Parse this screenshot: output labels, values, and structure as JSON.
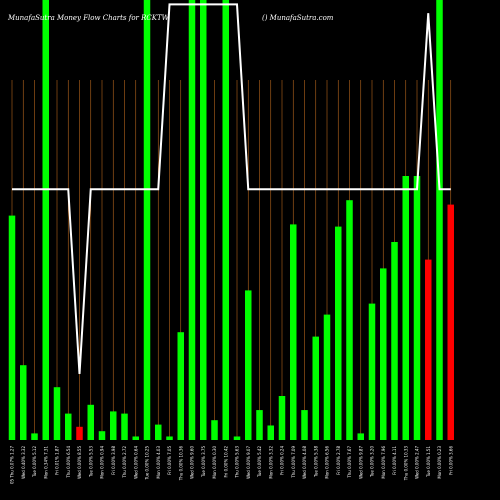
{
  "chart_data": {
    "type": "bar",
    "title": "MunafaSutra  Money Flow  Charts for RCKTW",
    "subtitle": "() MunafaSutra.com",
    "colors": {
      "background": "#000000",
      "bar_up": "#00ff00",
      "bar_down": "#ff0000",
      "grid": "#b5651d",
      "line": "#ffffff"
    },
    "grid": "vertical",
    "ylim": [
      0,
      100
    ],
    "categories": [
      "05 Thu 0.07% 1.27",
      "Wed 0.40% 3.32",
      "Tue 0.00% 5.12",
      "Mon 0.34% 7.31",
      "Fri 0.01% 1.87",
      "Thu 0.00% 6.54",
      "Wed 0.00% 8.55",
      "Tue 0.00% 5.53",
      "Mon 0.00% 0.94",
      "Fri 0.00% 3.98",
      "Thu 0.00% 2.72",
      "Wed 0.00% 0.64",
      "Tue 0.00% 10.25",
      "Mon 0.00% 4.03",
      "Fri 0.00% 7.05",
      "Thu 0.00% 10.36",
      "Wed 0.00% 9.60",
      "Tue 0.00% 3.75",
      "Mon 0.00% 0.30",
      "Fri 0.00% 10.42",
      "Thu 0.00% 5.63",
      "Wed 0.00% 9.07",
      "Tue 0.00% 5.42",
      "Mon 0.00% 3.32",
      "Fri 0.00% 0.24",
      "Thu 0.00% 7.09",
      "Wed 0.00% 4.08",
      "Tue 0.00% 5.38",
      "Mon 0.00% 6.56",
      "Fri 0.00% 2.78",
      "Thu 0.00% 7.67",
      "Wed 0.00% 9.87",
      "Tue 0.00% 3.20",
      "Mon 0.00% 7.96",
      "Fri 0.00% 4.11",
      "Thu 0.00% 10.33",
      "Wed 0.00% 2.47",
      "Tue 0.00% 1.51",
      "Mon 0.00% 0.23",
      "Fri 0.00% 3.66"
    ],
    "series": [
      {
        "values": [
          51,
          17,
          1.5,
          100,
          12,
          6,
          3,
          8,
          2,
          6.5,
          6,
          0.8,
          100,
          3.5,
          0.8,
          24.5,
          100,
          100,
          4.5,
          100,
          0.8,
          34,
          6.8,
          3.3,
          10,
          49,
          6.8,
          23.5,
          28.5,
          48.5,
          54.5,
          1.5,
          31,
          39,
          45,
          60,
          60,
          41,
          100,
          53.5
        ],
        "directions": [
          "up",
          "up",
          "up",
          "up",
          "up",
          "up",
          "down",
          "up",
          "up",
          "up",
          "up",
          "up",
          "up",
          "up",
          "up",
          "up",
          "up",
          "up",
          "up",
          "up",
          "up",
          "up",
          "up",
          "up",
          "up",
          "up",
          "up",
          "up",
          "up",
          "up",
          "up",
          "up",
          "up",
          "up",
          "up",
          "up",
          "up",
          "down",
          "up",
          "down"
        ]
      }
    ],
    "line": {
      "values": [
        57,
        57,
        57,
        57,
        57,
        57,
        15,
        57,
        57,
        57,
        57,
        57,
        57,
        57,
        99,
        99,
        99,
        99,
        99,
        99,
        99,
        57,
        57,
        57,
        57,
        57,
        57,
        57,
        57,
        57,
        57,
        57,
        57,
        57,
        57,
        57,
        57,
        97,
        57,
        57
      ]
    }
  }
}
